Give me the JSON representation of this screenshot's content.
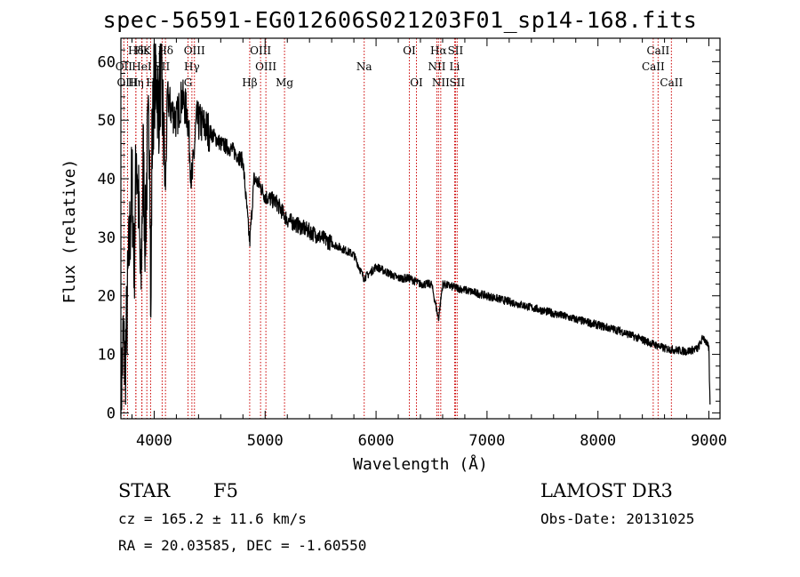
{
  "title": "spec-56591-EG012606S021203F01_sp14-168.fits",
  "info": {
    "object_type": "STAR",
    "subclass": "F5",
    "survey": "LAMOST DR3",
    "redshift": "cz = 165.2 ± 11.6 km/s",
    "obs_date": "Obs-Date: 20131025",
    "coords": "RA =  20.03585, DEC =  -1.60550"
  },
  "chart_data": {
    "type": "line",
    "xlabel": "Wavelength (Å)",
    "ylabel": "Flux (relative)",
    "xlim": [
      3700,
      9100
    ],
    "ylim": [
      -1,
      64
    ],
    "xticks": [
      4000,
      5000,
      6000,
      7000,
      8000,
      9000
    ],
    "yticks": [
      0,
      10,
      20,
      30,
      40,
      50,
      60
    ],
    "line_color": "#000000",
    "marker_color": "#cc0000",
    "spectrum_anchor_points": [
      [
        3700,
        2
      ],
      [
        3720,
        12
      ],
      [
        3740,
        8
      ],
      [
        3760,
        20
      ],
      [
        3780,
        30
      ],
      [
        3800,
        40
      ],
      [
        3820,
        25
      ],
      [
        3840,
        46
      ],
      [
        3860,
        35
      ],
      [
        3880,
        20
      ],
      [
        3900,
        44
      ],
      [
        3920,
        30
      ],
      [
        3940,
        45
      ],
      [
        3960,
        50
      ],
      [
        3970,
        12
      ],
      [
        3980,
        45
      ],
      [
        4000,
        57
      ],
      [
        4020,
        58
      ],
      [
        4040,
        52
      ],
      [
        4060,
        58
      ],
      [
        4080,
        50
      ],
      [
        4101,
        38
      ],
      [
        4120,
        54
      ],
      [
        4150,
        52
      ],
      [
        4200,
        50
      ],
      [
        4250,
        54
      ],
      [
        4300,
        51
      ],
      [
        4340,
        39
      ],
      [
        4380,
        50
      ],
      [
        4450,
        49
      ],
      [
        4500,
        48
      ],
      [
        4600,
        46
      ],
      [
        4700,
        45
      ],
      [
        4800,
        43
      ],
      [
        4861,
        29
      ],
      [
        4900,
        40
      ],
      [
        4950,
        39
      ],
      [
        5000,
        37
      ],
      [
        5100,
        36
      ],
      [
        5200,
        33
      ],
      [
        5300,
        32
      ],
      [
        5400,
        31
      ],
      [
        5500,
        30
      ],
      [
        5600,
        29
      ],
      [
        5700,
        28
      ],
      [
        5800,
        27
      ],
      [
        5890,
        23
      ],
      [
        5950,
        24
      ],
      [
        6000,
        25
      ],
      [
        6100,
        24
      ],
      [
        6200,
        23
      ],
      [
        6300,
        23
      ],
      [
        6400,
        22
      ],
      [
        6500,
        22
      ],
      [
        6563,
        16
      ],
      [
        6600,
        22
      ],
      [
        6700,
        21.5
      ],
      [
        6800,
        21
      ],
      [
        7000,
        20
      ],
      [
        7200,
        19
      ],
      [
        7400,
        18
      ],
      [
        7600,
        17
      ],
      [
        7800,
        16
      ],
      [
        8000,
        15
      ],
      [
        8200,
        14
      ],
      [
        8400,
        12.5
      ],
      [
        8600,
        11
      ],
      [
        8800,
        10.5
      ],
      [
        8900,
        11
      ],
      [
        8950,
        13
      ],
      [
        9000,
        11
      ],
      [
        9010,
        1
      ]
    ],
    "spectral_lines": [
      {
        "label": "Hδ",
        "wavelength": 3835,
        "row": 0
      },
      {
        "label": "Hε",
        "wavelength": 3890,
        "row": 0
      },
      {
        "label": "K",
        "wavelength": 3934,
        "row": 0
      },
      {
        "label": "Hδ",
        "wavelength": 4102,
        "row": 0
      },
      {
        "label": "OIII",
        "wavelength": 4363,
        "row": 0
      },
      {
        "label": "OIII",
        "wavelength": 4959,
        "row": 0
      },
      {
        "label": "OI",
        "wavelength": 6300,
        "row": 0
      },
      {
        "label": "Hα",
        "wavelength": 6563,
        "row": 0
      },
      {
        "label": "SII",
        "wavelength": 6716,
        "row": 0
      },
      {
        "label": "CaII",
        "wavelength": 8542,
        "row": 0
      },
      {
        "label": "OII",
        "wavelength": 3727,
        "row": 1
      },
      {
        "label": "HeI",
        "wavelength": 3888,
        "row": 1
      },
      {
        "label": "SII",
        "wavelength": 4072,
        "row": 1
      },
      {
        "label": "Hγ",
        "wavelength": 4340,
        "row": 1
      },
      {
        "label": "OIII",
        "wavelength": 5007,
        "row": 1
      },
      {
        "label": "Na",
        "wavelength": 5893,
        "row": 1
      },
      {
        "label": "NII",
        "wavelength": 6548,
        "row": 1
      },
      {
        "label": "Li",
        "wavelength": 6708,
        "row": 1
      },
      {
        "label": "CaII",
        "wavelength": 8498,
        "row": 1
      },
      {
        "label": "OIII",
        "wavelength": 3760,
        "row": 2
      },
      {
        "label": "Hη",
        "wavelength": 3835,
        "row": 2
      },
      {
        "label": "H",
        "wavelength": 3968,
        "row": 2
      },
      {
        "label": "G",
        "wavelength": 4305,
        "row": 2
      },
      {
        "label": "Hβ",
        "wavelength": 4861,
        "row": 2
      },
      {
        "label": "Mg",
        "wavelength": 5175,
        "row": 2
      },
      {
        "label": "OI",
        "wavelength": 6364,
        "row": 2
      },
      {
        "label": "NII",
        "wavelength": 6583,
        "row": 2
      },
      {
        "label": "SII",
        "wavelength": 6731,
        "row": 2
      },
      {
        "label": "CaII",
        "wavelength": 8662,
        "row": 2
      }
    ]
  }
}
